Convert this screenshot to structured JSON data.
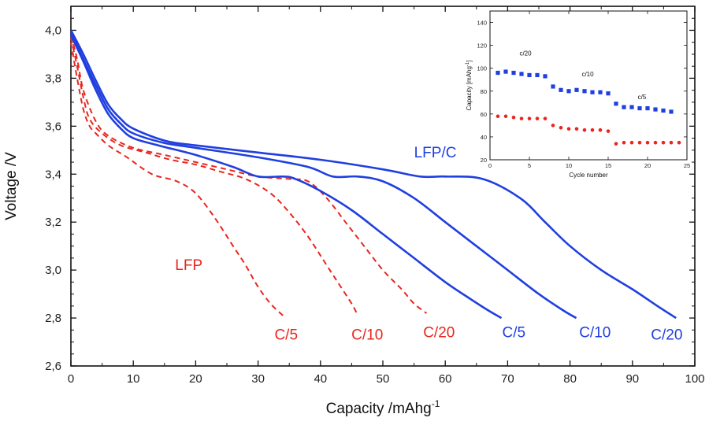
{
  "colors": {
    "lfp": "#e8261f",
    "lfp_c": "#1f3fe0",
    "axis": "#111111"
  },
  "chart_data": [
    {
      "type": "line",
      "xlabel": "Capacity /mAhg",
      "xlabel_sup": "-1",
      "ylabel": "Voltage /V",
      "xlim": [
        0,
        100
      ],
      "ylim": [
        2.6,
        4.1
      ],
      "x_ticks": [
        0,
        10,
        20,
        30,
        40,
        50,
        60,
        70,
        80,
        90,
        100
      ],
      "y_ticks": [
        2.6,
        2.8,
        3.0,
        3.2,
        3.4,
        3.6,
        3.8,
        4.0
      ],
      "y_tick_labels": [
        "2,6",
        "2,8",
        "3,0",
        "3,2",
        "3,4",
        "3,6",
        "3,8",
        "4,0"
      ],
      "annotations": [
        {
          "text": "LFP/C",
          "x": 55,
          "y": 3.47,
          "color": "lfp_c"
        },
        {
          "text": "LFP",
          "x": 16.7,
          "y": 3.0,
          "color": "lfp"
        }
      ],
      "series": [
        {
          "name": "C/5",
          "group": "LFP",
          "style": "dashed",
          "color": "lfp",
          "x": [
            0,
            1,
            2,
            3,
            4,
            6,
            9,
            13,
            17,
            20,
            23,
            26,
            28,
            30,
            32,
            34
          ],
          "y": [
            3.95,
            3.8,
            3.67,
            3.6,
            3.57,
            3.52,
            3.47,
            3.4,
            3.37,
            3.32,
            3.22,
            3.1,
            3.02,
            2.93,
            2.86,
            2.81
          ]
        },
        {
          "name": "C/10",
          "group": "LFP",
          "style": "dashed",
          "color": "lfp",
          "x": [
            0,
            1,
            2,
            3,
            5,
            8,
            12,
            16,
            20,
            24,
            28,
            32,
            35,
            38,
            41,
            43,
            45,
            46
          ],
          "y": [
            3.97,
            3.85,
            3.72,
            3.63,
            3.57,
            3.52,
            3.49,
            3.46,
            3.44,
            3.41,
            3.38,
            3.32,
            3.24,
            3.14,
            3.02,
            2.94,
            2.86,
            2.81
          ]
        },
        {
          "name": "C/20",
          "group": "LFP",
          "style": "dashed",
          "color": "lfp",
          "x": [
            0,
            1,
            2,
            4,
            6,
            10,
            15,
            20,
            25,
            30,
            35,
            38,
            41,
            44,
            47,
            50,
            53,
            55,
            57
          ],
          "y": [
            3.98,
            3.88,
            3.75,
            3.62,
            3.56,
            3.51,
            3.48,
            3.45,
            3.42,
            3.39,
            3.38,
            3.37,
            3.3,
            3.2,
            3.1,
            3.0,
            2.92,
            2.86,
            2.82
          ]
        },
        {
          "name": "C/5",
          "group": "LFP/C",
          "style": "solid",
          "color": "lfp_c",
          "x": [
            0,
            2,
            4,
            6,
            8,
            10,
            14,
            20,
            26,
            30,
            34,
            36,
            40,
            45,
            50,
            55,
            60,
            64,
            67,
            69
          ],
          "y": [
            3.98,
            3.87,
            3.75,
            3.65,
            3.59,
            3.55,
            3.52,
            3.48,
            3.43,
            3.39,
            3.39,
            3.38,
            3.33,
            3.25,
            3.15,
            3.05,
            2.95,
            2.88,
            2.83,
            2.8
          ]
        },
        {
          "name": "C/10",
          "group": "LFP/C",
          "style": "solid",
          "color": "lfp_c",
          "x": [
            0,
            2,
            4,
            6,
            8,
            10,
            15,
            20,
            30,
            38,
            42,
            46,
            50,
            55,
            60,
            65,
            70,
            75,
            79,
            81
          ],
          "y": [
            3.99,
            3.88,
            3.77,
            3.67,
            3.61,
            3.57,
            3.53,
            3.51,
            3.47,
            3.43,
            3.39,
            3.39,
            3.37,
            3.3,
            3.2,
            3.1,
            3.0,
            2.9,
            2.83,
            2.8
          ]
        },
        {
          "name": "C/20",
          "group": "LFP/C",
          "style": "solid",
          "color": "lfp_c",
          "x": [
            0,
            2,
            4,
            6,
            8,
            10,
            15,
            20,
            30,
            40,
            50,
            56,
            60,
            66,
            72,
            76,
            80,
            85,
            90,
            94,
            97
          ],
          "y": [
            4.0,
            3.9,
            3.79,
            3.69,
            3.63,
            3.59,
            3.54,
            3.52,
            3.49,
            3.46,
            3.42,
            3.39,
            3.39,
            3.38,
            3.3,
            3.2,
            3.1,
            3.0,
            2.92,
            2.85,
            2.8
          ]
        }
      ],
      "end_labels": [
        {
          "text": "C/5",
          "x": 34.5,
          "y": 2.71,
          "color": "lfp"
        },
        {
          "text": "C/10",
          "x": 47.5,
          "y": 2.71,
          "color": "lfp"
        },
        {
          "text": "C/20",
          "x": 59,
          "y": 2.72,
          "color": "lfp"
        },
        {
          "text": "C/5",
          "x": 71,
          "y": 2.72,
          "color": "lfp_c"
        },
        {
          "text": "C/10",
          "x": 84,
          "y": 2.72,
          "color": "lfp_c"
        },
        {
          "text": "C/20",
          "x": 95.5,
          "y": 2.71,
          "color": "lfp_c"
        }
      ]
    },
    {
      "type": "scatter",
      "xlabel": "Cycle number",
      "ylabel": "Capacity [mAhg",
      "ylabel_sup": "-1",
      "ylabel_end": "]",
      "xlim": [
        0,
        25
      ],
      "ylim": [
        20,
        150
      ],
      "x_ticks": [
        0,
        5,
        10,
        15,
        20,
        25
      ],
      "y_ticks": [
        20,
        40,
        60,
        80,
        100,
        120,
        140
      ],
      "annotations": [
        {
          "text": "c/20",
          "x": 4.5,
          "y": 111
        },
        {
          "text": "c/10",
          "x": 12.4,
          "y": 93
        },
        {
          "text": "c/5",
          "x": 19.3,
          "y": 73
        }
      ],
      "series": [
        {
          "name": "LFP/C",
          "marker": "square",
          "color": "lfp_c",
          "x": [
            1,
            2,
            3,
            4,
            5,
            6,
            7,
            8,
            9,
            10,
            11,
            12,
            13,
            14,
            15,
            16,
            17,
            18,
            19,
            20,
            21,
            22,
            23
          ],
          "y": [
            96,
            97,
            96,
            95,
            94,
            94,
            93,
            84,
            81,
            80,
            81,
            80,
            79,
            79,
            78,
            69,
            66,
            66,
            65,
            65,
            64,
            63,
            62
          ]
        },
        {
          "name": "LFP",
          "marker": "circle",
          "color": "lfp",
          "x": [
            1,
            2,
            3,
            4,
            5,
            6,
            7,
            8,
            9,
            10,
            11,
            12,
            13,
            14,
            15,
            16,
            17,
            18,
            19,
            20,
            21,
            22,
            23,
            24
          ],
          "y": [
            58,
            58,
            57,
            56,
            56,
            56,
            56,
            50,
            48,
            47,
            47,
            46,
            46,
            46,
            45,
            34,
            35,
            35,
            35,
            35,
            35,
            35,
            35,
            35
          ]
        }
      ]
    }
  ]
}
